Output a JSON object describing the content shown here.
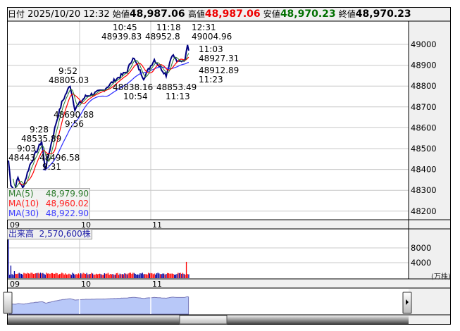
{
  "header": {
    "date_label": "日付",
    "datetime": "2025/10/20 12:32",
    "open_label": "始値",
    "open": "48,987.06",
    "high_label": "高値",
    "high": "48,987.06",
    "low_label": "安値",
    "low": "48,970.23",
    "close_label": "終値",
    "close": "48,970.23"
  },
  "colors": {
    "high": "#ee0000",
    "low": "#007000",
    "price": "#000080",
    "ma5": "#2a7a2a",
    "ma10": "#ff0000",
    "ma30": "#2a2aff",
    "vol_up": "#ff0000",
    "vol_down": "#0000a0",
    "nav_fill": "#b8c8f8"
  },
  "price_axis": {
    "ticks": [
      "49000",
      "48900",
      "48800",
      "48700",
      "48600",
      "48500",
      "48400",
      "48300",
      "48200"
    ]
  },
  "time_axis": {
    "ticks": [
      "09",
      "10",
      "11"
    ]
  },
  "annotations": [
    "12:31",
    "49004.96",
    "11:18",
    "48952.8",
    "10:45",
    "48939.83",
    "11:03",
    "48927.31",
    "48912.89",
    "11:23",
    "48838.16",
    "48853.49",
    "10:54",
    "11:13",
    "9:52",
    "48805.03",
    "48690.88",
    "9:56",
    "9:28",
    "48535.89",
    "9:03",
    "48443",
    "48496.58",
    "9:31"
  ],
  "chart_data": {
    "type": "line",
    "x_label": "",
    "y_label": "",
    "ylim": [
      48170,
      49090
    ],
    "price_keypoints": [
      [
        "9:00",
        48443
      ],
      [
        "9:02",
        48330
      ],
      [
        "9:05",
        48300
      ],
      [
        "9:08",
        48360
      ],
      [
        "9:12",
        48310
      ],
      [
        "9:18",
        48420
      ],
      [
        "9:28",
        48535.89
      ],
      [
        "9:31",
        48400
      ],
      [
        "9:40",
        48620
      ],
      [
        "9:45",
        48720
      ],
      [
        "9:52",
        48805.03
      ],
      [
        "9:56",
        48690.88
      ],
      [
        "10:05",
        48750
      ],
      [
        "10:20",
        48780
      ],
      [
        "10:30",
        48830
      ],
      [
        "10:40",
        48870
      ],
      [
        "10:45",
        48939.83
      ],
      [
        "10:54",
        48838.16
      ],
      [
        "11:03",
        48927.31
      ],
      [
        "11:13",
        48853.49
      ],
      [
        "11:18",
        48952.8
      ],
      [
        "11:23",
        48912.89
      ],
      [
        "11:29",
        48930
      ],
      [
        "12:30",
        48960
      ],
      [
        "12:31",
        49004.96
      ],
      [
        "12:32",
        48970.23
      ]
    ],
    "ma_legend": [
      {
        "name": "MA(5)",
        "value": "48,979.90"
      },
      {
        "name": "MA(10)",
        "value": "48,960.02"
      },
      {
        "name": "MA(30)",
        "value": "48,922.90"
      }
    ]
  },
  "volume": {
    "label": "出来高",
    "value": "2,570,600株",
    "ticks": [
      "8000",
      "4000"
    ],
    "unit": "(万株)"
  }
}
